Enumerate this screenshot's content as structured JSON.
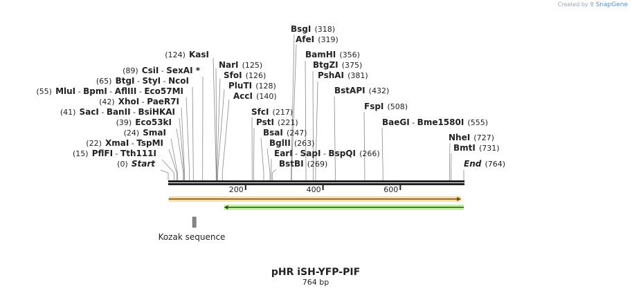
{
  "credit": {
    "text": "Created by",
    "brand": "SnapGene"
  },
  "map": {
    "title": "pHR iSH-YFP-PIF",
    "length_label": "764 bp",
    "length": 764,
    "ticks": [
      "200",
      "400",
      "600"
    ],
    "tick_values": [
      200,
      400,
      600
    ],
    "features": [
      {
        "name": "Kozak sequence",
        "start": 63,
        "end": 72,
        "color": "#888888"
      },
      {
        "name": "",
        "start": 1,
        "end": 757,
        "color": "#e8a33a",
        "direction": "forward"
      },
      {
        "name": "",
        "start": 144,
        "end": 764,
        "color": "#6fcf3a",
        "direction": "reverse"
      }
    ]
  },
  "sites": [
    {
      "pos": 0,
      "label": "(0)",
      "names": [
        "Start"
      ],
      "italic": true
    },
    {
      "pos": 15,
      "label": "(15)",
      "names": [
        "PflFI",
        "Tth111I"
      ]
    },
    {
      "pos": 22,
      "label": "(22)",
      "names": [
        "XmaI",
        "TspMI"
      ]
    },
    {
      "pos": 24,
      "label": "(24)",
      "names": [
        "SmaI"
      ]
    },
    {
      "pos": 39,
      "label": "(39)",
      "names": [
        "Eco53kI"
      ]
    },
    {
      "pos": 41,
      "label": "(41)",
      "names": [
        "SacI",
        "BanII",
        "BsiHKAI"
      ]
    },
    {
      "pos": 42,
      "label": "(42)",
      "names": [
        "XhoI",
        "PaeR7I"
      ]
    },
    {
      "pos": 55,
      "label": "(55)",
      "names": [
        "MluI",
        "BpmI",
        "AflIII",
        "Eco57MI"
      ]
    },
    {
      "pos": 65,
      "label": "(65)",
      "names": [
        "BtgI",
        "StyI",
        "NcoI"
      ]
    },
    {
      "pos": 89,
      "label": "(89)",
      "names": [
        "CsiI",
        "SexAI *"
      ]
    },
    {
      "pos": 124,
      "label": "(124)",
      "names": [
        "KasI"
      ]
    },
    {
      "pos": 125,
      "label": "(125)",
      "names": [
        "NarI"
      ]
    },
    {
      "pos": 126,
      "label": "(126)",
      "names": [
        "SfoI"
      ]
    },
    {
      "pos": 128,
      "label": "(128)",
      "names": [
        "PluTI"
      ]
    },
    {
      "pos": 140,
      "label": "(140)",
      "names": [
        "AccI"
      ]
    },
    {
      "pos": 217,
      "label": "(217)",
      "names": [
        "SfcI"
      ]
    },
    {
      "pos": 221,
      "label": "(221)",
      "names": [
        "PstI"
      ]
    },
    {
      "pos": 247,
      "label": "(247)",
      "names": [
        "BsaI"
      ]
    },
    {
      "pos": 263,
      "label": "(263)",
      "names": [
        "BglII"
      ]
    },
    {
      "pos": 266,
      "label": "(266)",
      "names": [
        "EarI",
        "SapI",
        "BspQI"
      ]
    },
    {
      "pos": 269,
      "label": "(269)",
      "names": [
        "BstBI"
      ]
    },
    {
      "pos": 318,
      "label": "(318)",
      "names": [
        "BsgI"
      ]
    },
    {
      "pos": 319,
      "label": "(319)",
      "names": [
        "AfeI"
      ]
    },
    {
      "pos": 356,
      "label": "(356)",
      "names": [
        "BamHI"
      ]
    },
    {
      "pos": 375,
      "label": "(375)",
      "names": [
        "BtgZI"
      ]
    },
    {
      "pos": 381,
      "label": "(381)",
      "names": [
        "PshAI"
      ]
    },
    {
      "pos": 432,
      "label": "(432)",
      "names": [
        "BstAPI"
      ]
    },
    {
      "pos": 508,
      "label": "(508)",
      "names": [
        "FspI"
      ]
    },
    {
      "pos": 555,
      "label": "(555)",
      "names": [
        "BaeGI",
        "Bme1580I"
      ]
    },
    {
      "pos": 727,
      "label": "(727)",
      "names": [
        "NheI"
      ]
    },
    {
      "pos": 731,
      "label": "(731)",
      "names": [
        "BmtI"
      ]
    },
    {
      "pos": 764,
      "label": "(764)",
      "names": [
        "End"
      ],
      "italic": true
    }
  ]
}
